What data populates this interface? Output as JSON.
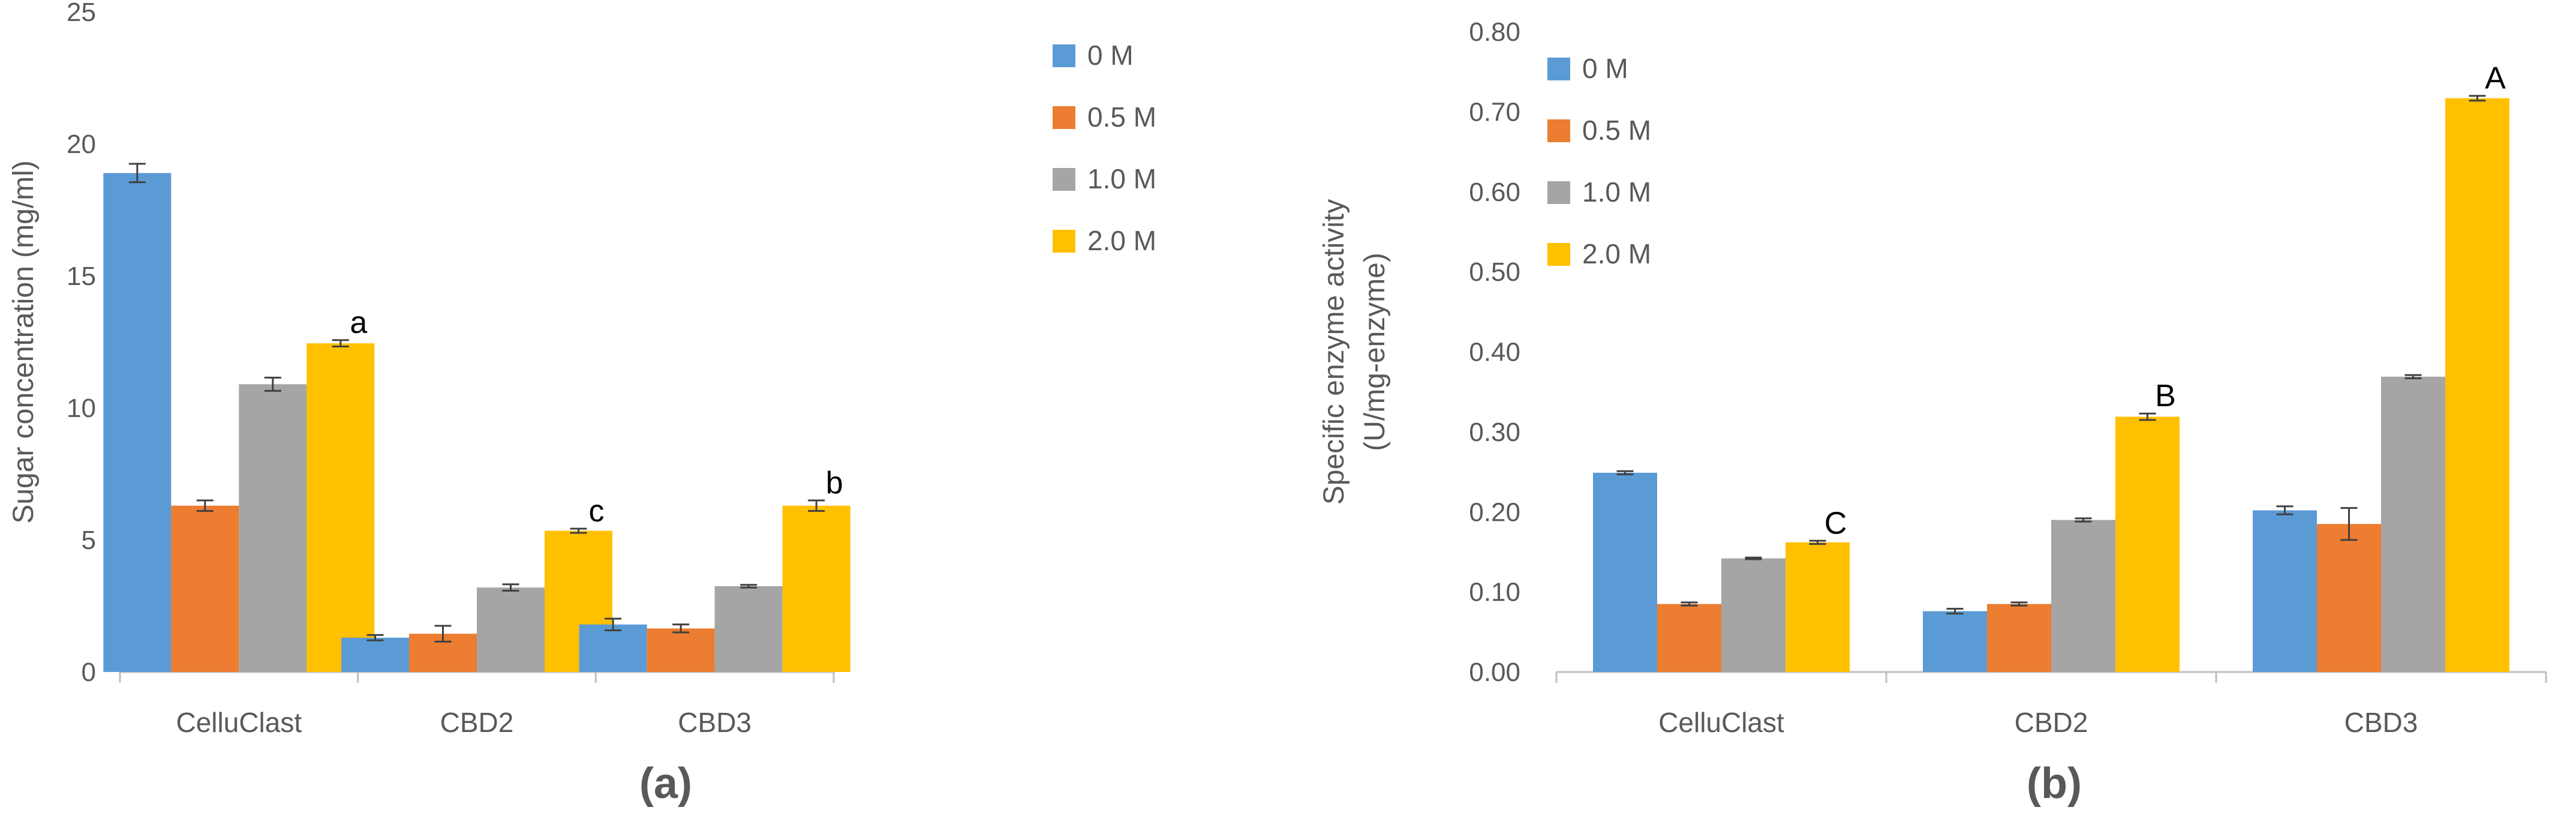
{
  "colors": {
    "series": [
      "#5b9bd5",
      "#ed7d31",
      "#a5a5a5",
      "#ffc000"
    ],
    "axis": "#bfbfbf",
    "text": "#595959",
    "error_bar": "#404040"
  },
  "chart_data": [
    {
      "type": "bar",
      "panel_label": "(a)",
      "ylabel": "Sugar concentration (mg/ml)",
      "ylim": [
        0,
        25
      ],
      "yticks": [
        "0",
        "5",
        "10",
        "15",
        "20",
        "25"
      ],
      "ytick_values": [
        0,
        5,
        10,
        15,
        20,
        25
      ],
      "categories": [
        "CelluClast",
        "CBD2",
        "CBD3"
      ],
      "series": [
        {
          "name": "0 M",
          "values": [
            18.9,
            1.3,
            1.8
          ],
          "errors": [
            0.35,
            0.1,
            0.22
          ]
        },
        {
          "name": "0.5 M",
          "values": [
            6.3,
            1.45,
            1.65
          ],
          "errors": [
            0.2,
            0.3,
            0.15
          ]
        },
        {
          "name": "1.0 M",
          "values": [
            10.9,
            3.2,
            3.25
          ],
          "errors": [
            0.25,
            0.12,
            0.05
          ]
        },
        {
          "name": "2.0 M",
          "values": [
            12.45,
            5.35,
            6.3
          ],
          "errors": [
            0.12,
            0.08,
            0.2
          ]
        }
      ],
      "annotations": [
        {
          "category": 0,
          "series": 3,
          "text": "a"
        },
        {
          "category": 1,
          "series": 3,
          "text": "c"
        },
        {
          "category": 2,
          "series": 3,
          "text": "b"
        }
      ],
      "legend_position": "top-right"
    },
    {
      "type": "bar",
      "panel_label": "(b)",
      "ylabel": "Specific enzyme activity",
      "ylabel2": "(U/mg-enzyme)",
      "ylim": [
        0,
        0.8
      ],
      "yticks": [
        "0.00",
        "0.10",
        "0.20",
        "0.30",
        "0.40",
        "0.50",
        "0.60",
        "0.70",
        "0.80"
      ],
      "ytick_values": [
        0,
        0.1,
        0.2,
        0.3,
        0.4,
        0.5,
        0.6,
        0.7,
        0.8
      ],
      "categories": [
        "CelluClast",
        "CBD2",
        "CBD3"
      ],
      "series": [
        {
          "name": "0 M",
          "values": [
            0.249,
            0.076,
            0.202
          ],
          "errors": [
            0.002,
            0.003,
            0.005
          ]
        },
        {
          "name": "0.5 M",
          "values": [
            0.085,
            0.085,
            0.185
          ],
          "errors": [
            0.002,
            0.002,
            0.02
          ]
        },
        {
          "name": "1.0 M",
          "values": [
            0.142,
            0.19,
            0.369
          ],
          "errors": [
            0.001,
            0.002,
            0.002
          ]
        },
        {
          "name": "2.0 M",
          "values": [
            0.162,
            0.319,
            0.717
          ],
          "errors": [
            0.002,
            0.004,
            0.003
          ]
        }
      ],
      "annotations": [
        {
          "category": 0,
          "series": 3,
          "text": "C"
        },
        {
          "category": 1,
          "series": 3,
          "text": "B"
        },
        {
          "category": 2,
          "series": 3,
          "text": "A"
        }
      ],
      "legend_position": "top-left"
    }
  ]
}
